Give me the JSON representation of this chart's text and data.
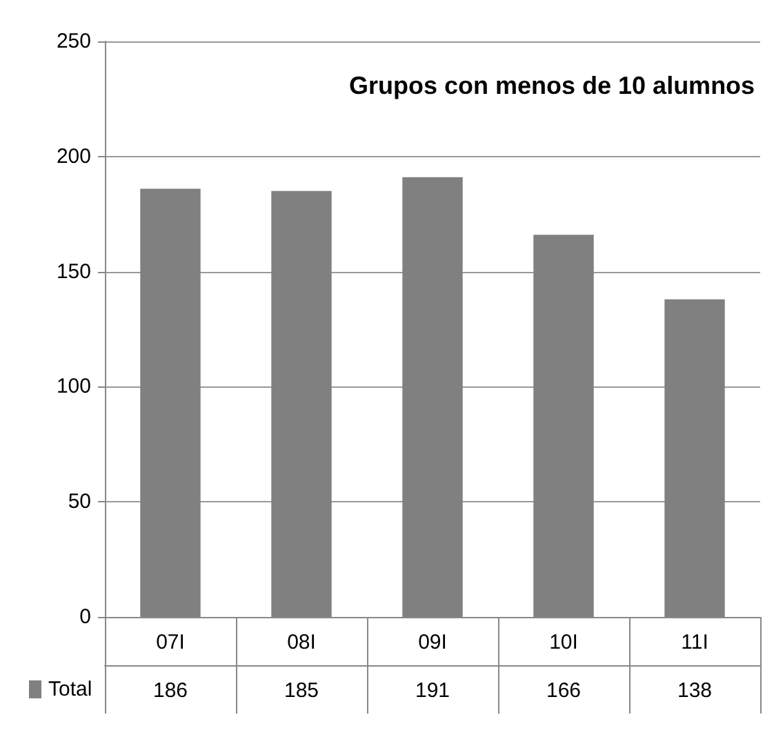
{
  "chart_data": {
    "type": "bar",
    "title": "Grupos con menos de 10 alumnos",
    "categories": [
      "07I",
      "08I",
      "09I",
      "10I",
      "11I"
    ],
    "series": [
      {
        "name": "Total",
        "color": "#808080",
        "values": [
          186,
          185,
          191,
          166,
          138
        ]
      }
    ],
    "ylim": [
      0,
      250
    ],
    "yticks": [
      0,
      50,
      100,
      150,
      200,
      250
    ],
    "grid": "y",
    "legend": "bottom left",
    "data_labels": true
  }
}
